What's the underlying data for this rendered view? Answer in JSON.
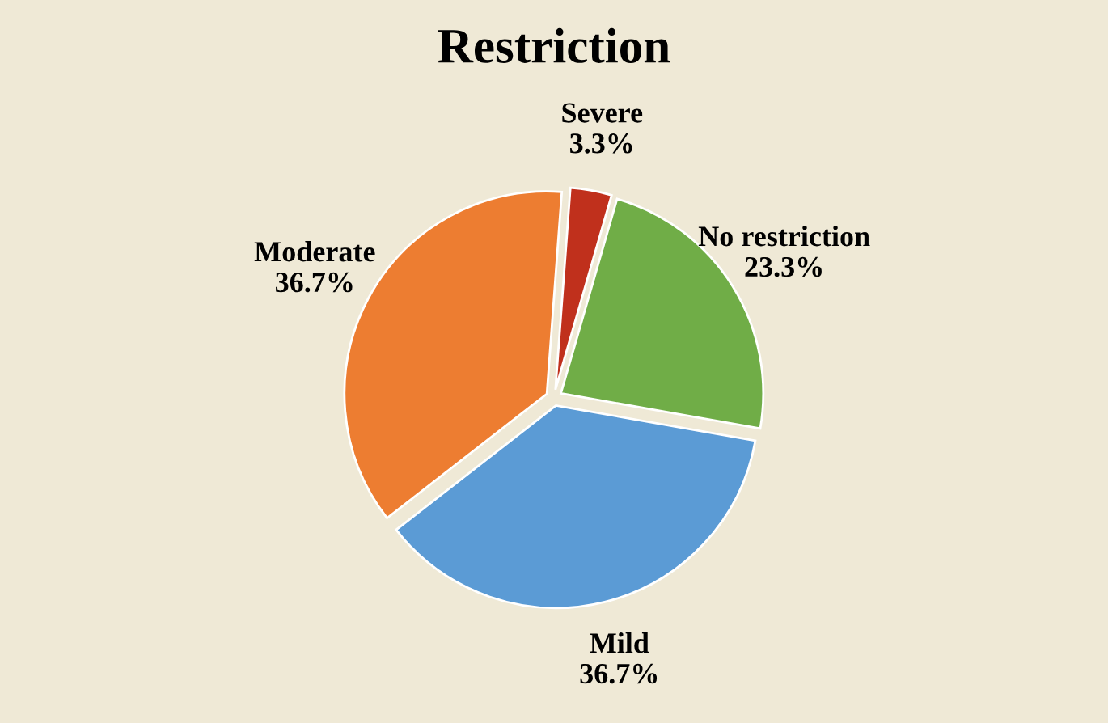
{
  "chart_data": {
    "type": "pie",
    "title": "Restriction",
    "categories": [
      "Mild",
      "Moderate",
      "Severe",
      "No restriction"
    ],
    "values": [
      36.7,
      36.7,
      3.3,
      23.3
    ],
    "colors": [
      "#5b9bd5",
      "#ed7d31",
      "#c0301c",
      "#70ad47"
    ],
    "value_labels": [
      "36.7%",
      "36.7%",
      "3.3%",
      "23.3%"
    ],
    "legend": false
  }
}
